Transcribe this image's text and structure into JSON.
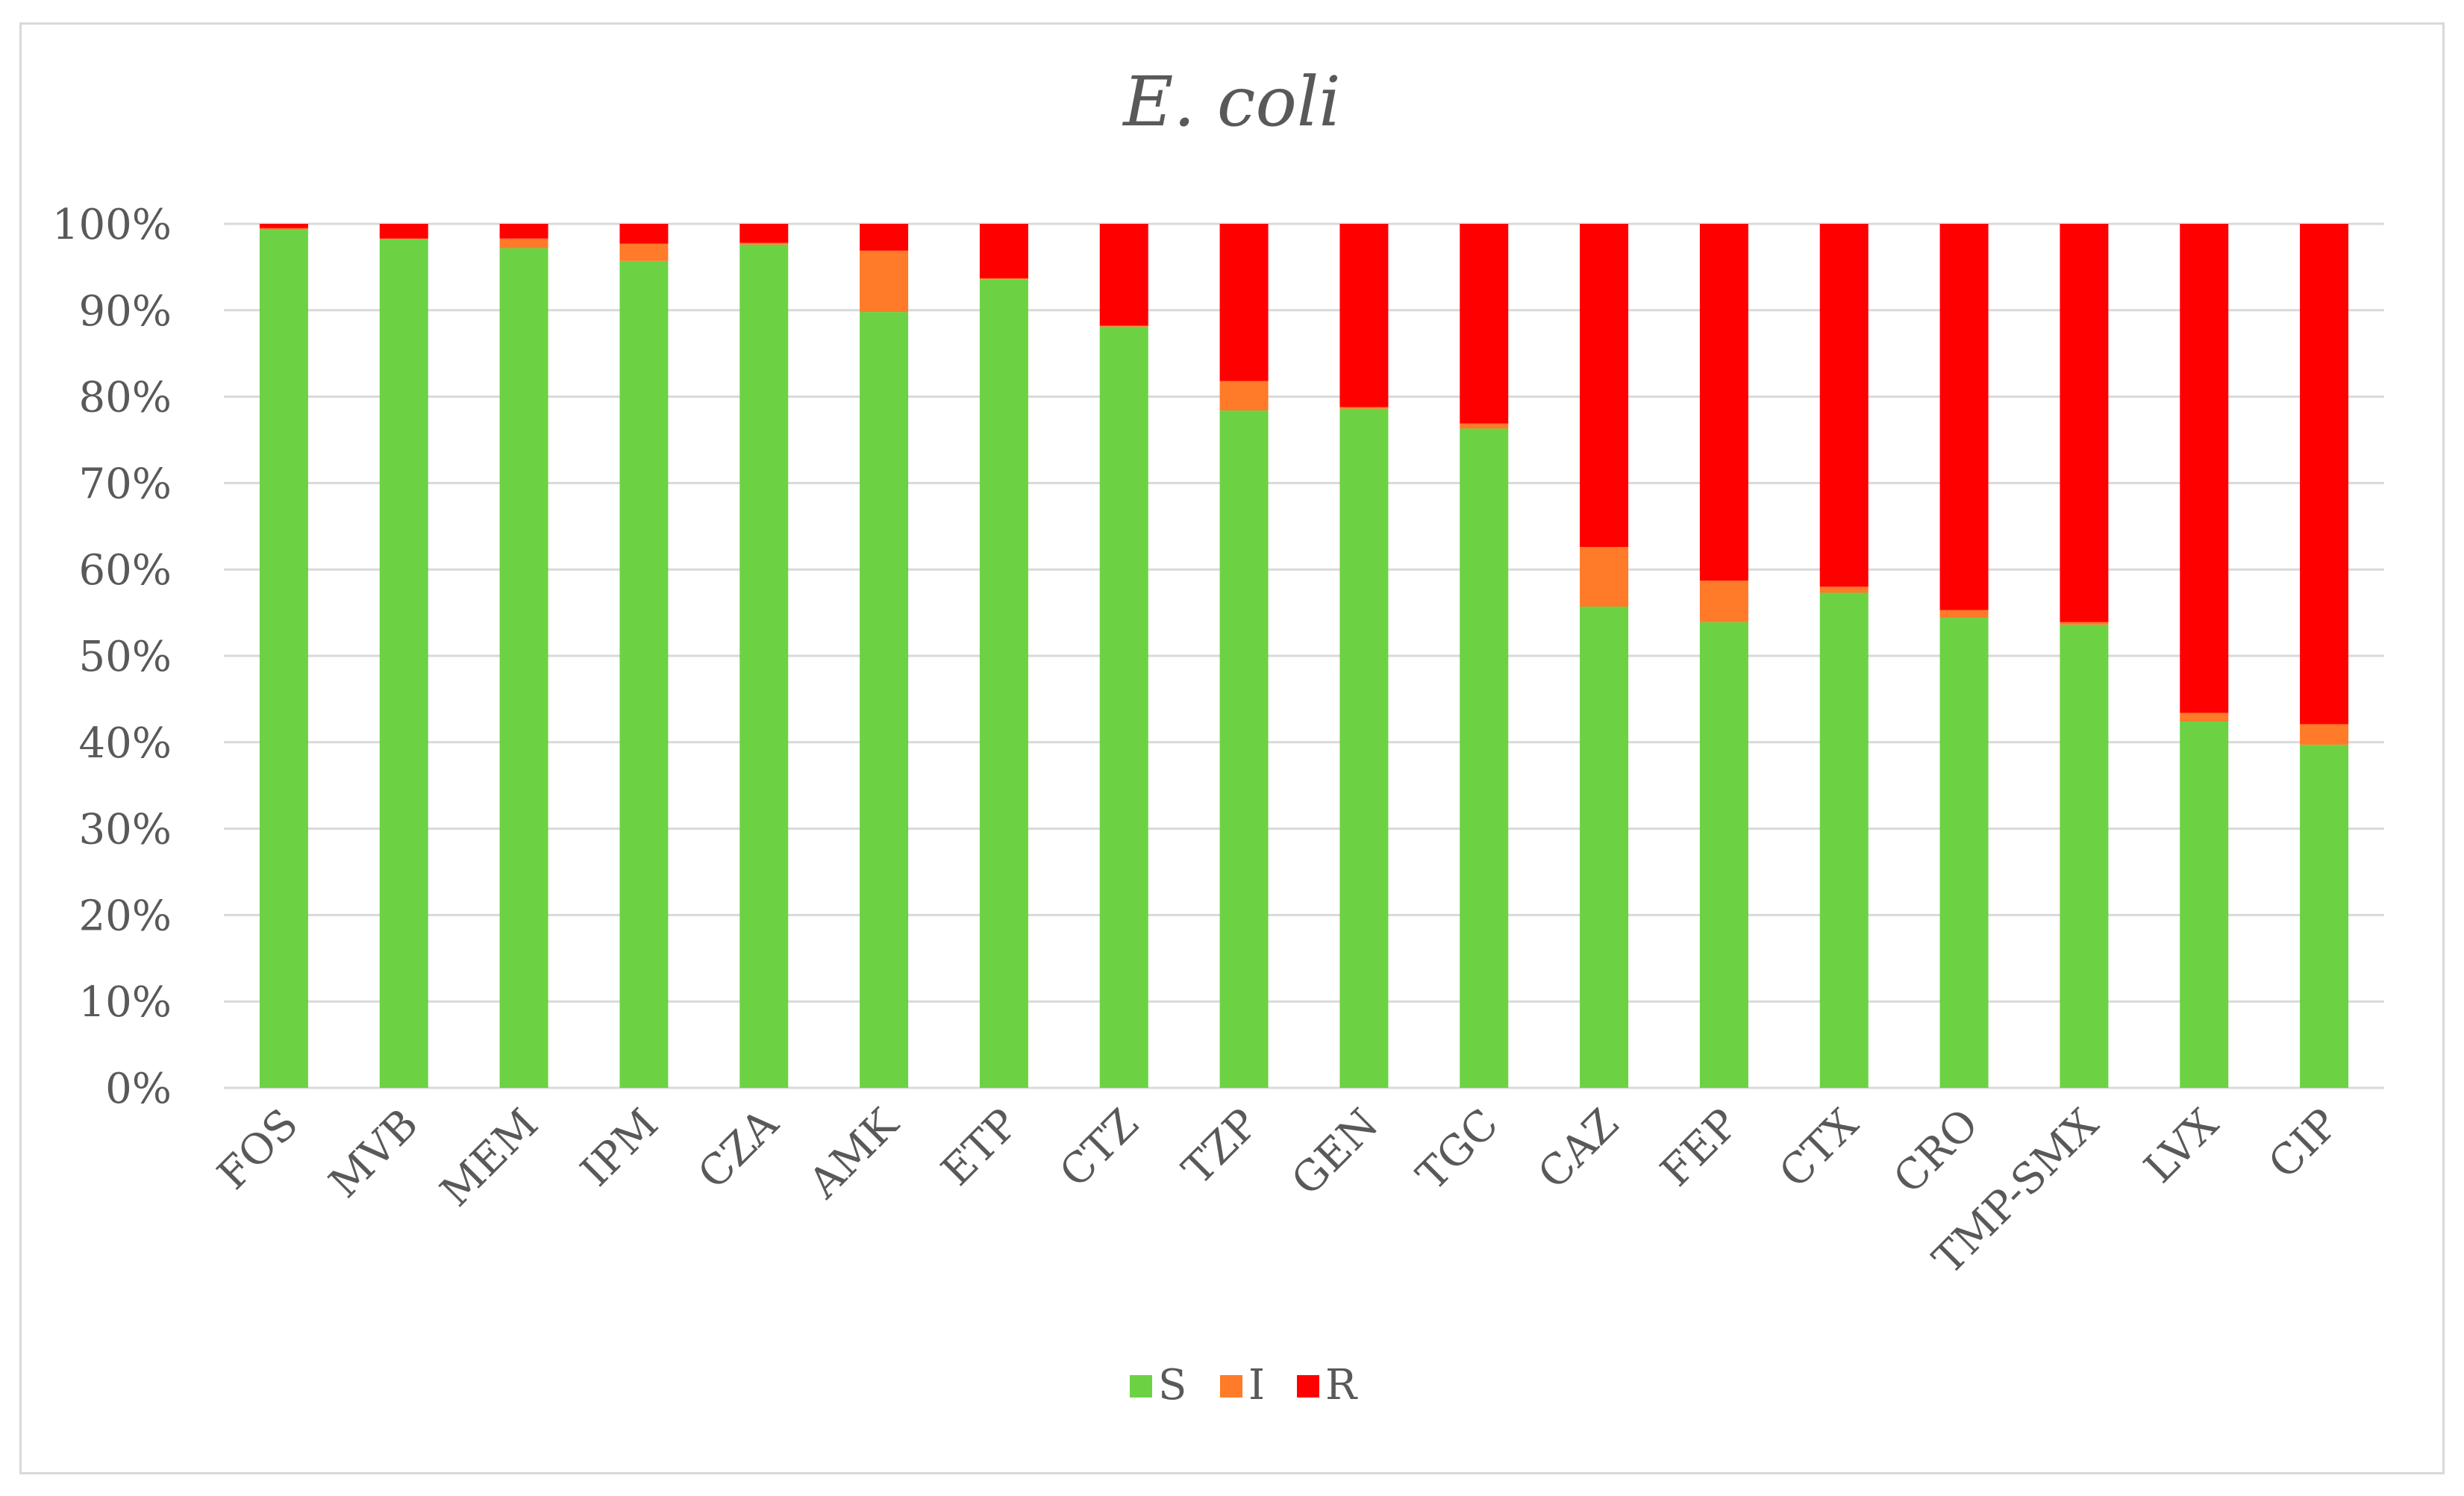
{
  "chart_data": {
    "type": "bar",
    "stacked": true,
    "percent": true,
    "title": "E. coli",
    "xlabel": "",
    "ylabel": "",
    "ylim": [
      0,
      100
    ],
    "y_ticks": [
      "0%",
      "10%",
      "20%",
      "30%",
      "40%",
      "50%",
      "60%",
      "70%",
      "80%",
      "90%",
      "100%"
    ],
    "grid": true,
    "legend_position": "bottom",
    "categories": [
      "FOS",
      "MVB",
      "MEM",
      "IPM",
      "CZA",
      "AMK",
      "ETP",
      "CTZ",
      "TZP",
      "GEN",
      "TGC",
      "CAZ",
      "FEP",
      "CTX",
      "CRO",
      "TMP-SMX",
      "LVX",
      "CIP"
    ],
    "series": [
      {
        "name": "S",
        "color": "#6cd243",
        "values": [
          99.3,
          98.2,
          97.2,
          95.7,
          97.6,
          89.8,
          93.6,
          88.1,
          78.4,
          78.6,
          76.3,
          55.7,
          53.9,
          57.3,
          54.4,
          53.6,
          42.4,
          39.7
        ]
      },
      {
        "name": "I",
        "color": "#ff7a29",
        "values": [
          0.2,
          0.1,
          1.1,
          2.0,
          0.2,
          7.1,
          0.1,
          0.1,
          3.4,
          0.2,
          0.6,
          6.9,
          4.8,
          0.7,
          0.9,
          0.3,
          1.0,
          2.4
        ]
      },
      {
        "name": "R",
        "color": "#ff0000",
        "values": [
          0.5,
          1.7,
          1.7,
          2.3,
          2.2,
          3.1,
          6.3,
          11.8,
          18.2,
          21.2,
          23.1,
          37.4,
          41.3,
          42.0,
          44.7,
          46.1,
          56.6,
          57.9
        ]
      }
    ]
  }
}
